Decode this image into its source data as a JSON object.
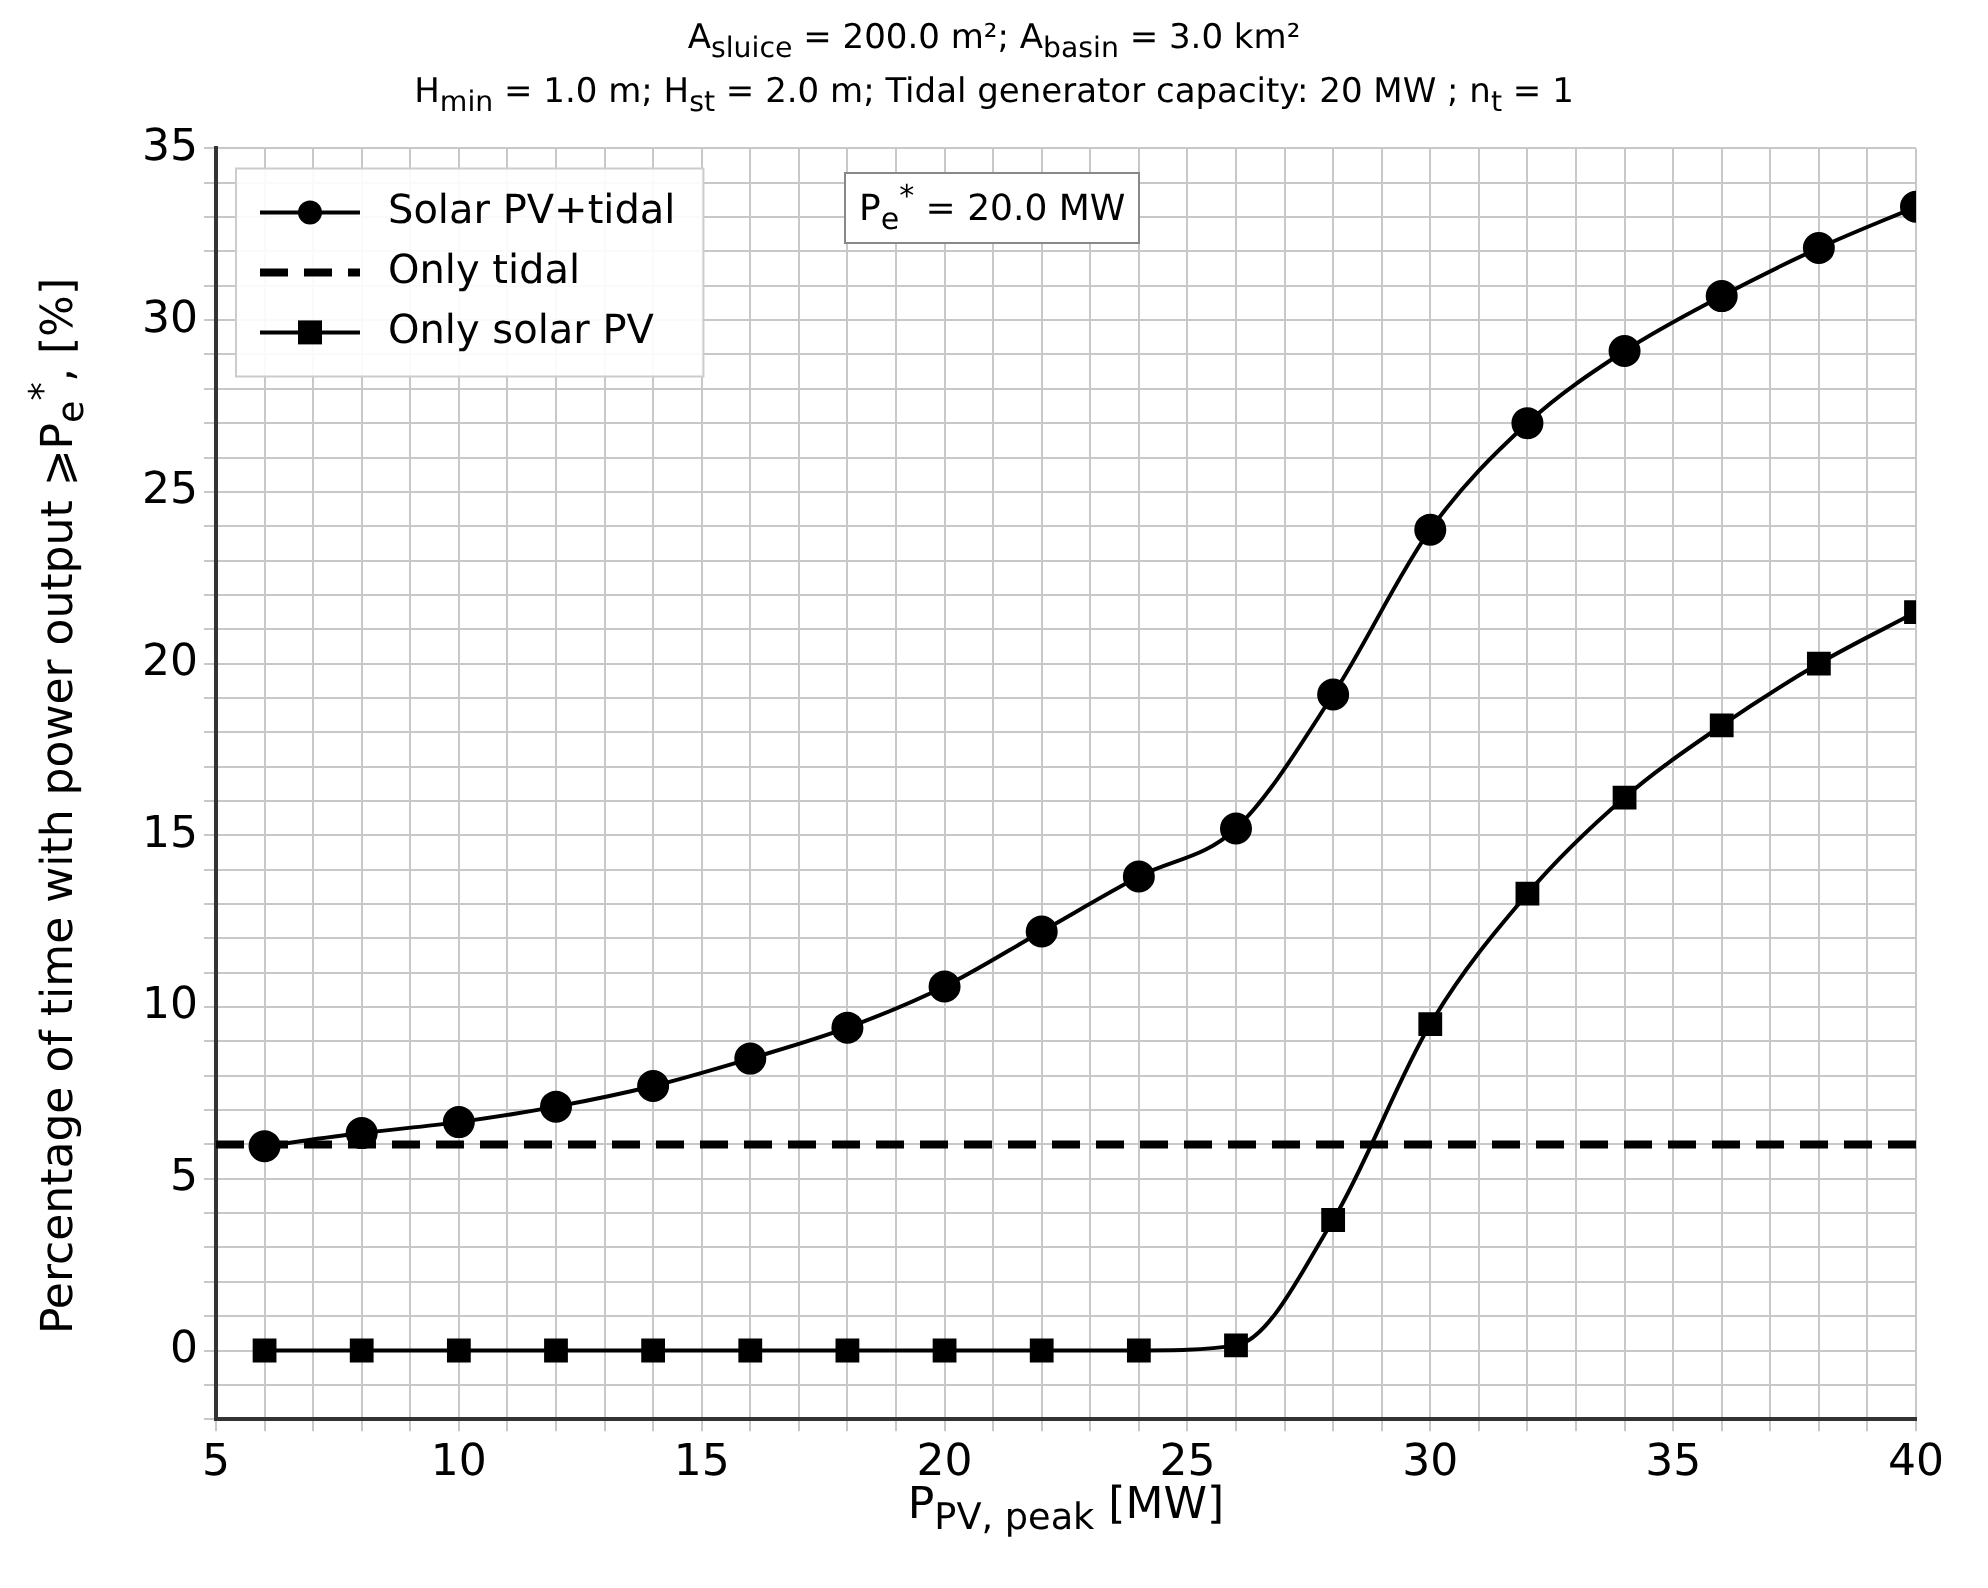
{
  "chart_data": {
    "type": "line",
    "title": "A$_{sluice}$ = 200.0 m²; A$_{basin}$ = 3.0 km²",
    "subtitle": "H$_{min}$ = 1.0 m; H$_{st}$ = 2.0 m; Tidal generator capacity: 20 MW ; n$_{t}$ = 1",
    "xlabel": "P$_{PV, peak}$ [MW]",
    "ylabel": "Percentage of time with power output ⩾P$_{e}$$^{*}$, [%]",
    "annotations": [
      "P$_{e}$$^{*}$ = 20.0 MW"
    ],
    "xlim": [
      5,
      40
    ],
    "ylim": [
      -2,
      35
    ],
    "xticks": [
      5,
      {
        "value": 6,
        "label": null
      },
      {
        "value": 7,
        "label": null
      },
      {
        "value": 8,
        "label": null
      },
      {
        "value": 9,
        "label": null
      },
      10,
      {
        "value": 11,
        "label": null
      },
      {
        "value": 12,
        "label": null
      },
      {
        "value": 13,
        "label": null
      },
      {
        "value": 14,
        "label": null
      },
      15,
      {
        "value": 16,
        "label": null
      },
      {
        "value": 17,
        "label": null
      },
      {
        "value": 18,
        "label": null
      },
      {
        "value": 19,
        "label": null
      },
      20,
      {
        "value": 21,
        "label": null
      },
      {
        "value": 22,
        "label": null
      },
      {
        "value": 23,
        "label": null
      },
      {
        "value": 24,
        "label": null
      },
      25,
      {
        "value": 26,
        "label": null
      },
      {
        "value": 27,
        "label": null
      },
      {
        "value": 28,
        "label": null
      },
      {
        "value": 29,
        "label": null
      },
      30,
      {
        "value": 31,
        "label": null
      },
      {
        "value": 32,
        "label": null
      },
      {
        "value": 33,
        "label": null
      },
      {
        "value": 34,
        "label": null
      },
      35,
      {
        "value": 36,
        "label": null
      },
      {
        "value": 37,
        "label": null
      },
      {
        "value": 38,
        "label": null
      },
      {
        "value": 39,
        "label": null
      },
      40
    ],
    "yticks": [
      {
        "value": -2,
        "label": null
      },
      {
        "value": -1,
        "label": null
      },
      0,
      {
        "value": 1,
        "label": null
      },
      {
        "value": 2,
        "label": null
      },
      {
        "value": 3,
        "label": null
      },
      {
        "value": 4,
        "label": null
      },
      5,
      {
        "value": 6,
        "label": null
      },
      {
        "value": 7,
        "label": null
      },
      {
        "value": 8,
        "label": null
      },
      {
        "value": 9,
        "label": null
      },
      10,
      {
        "value": 11,
        "label": null
      },
      {
        "value": 12,
        "label": null
      },
      {
        "value": 13,
        "label": null
      },
      {
        "value": 14,
        "label": null
      },
      15,
      {
        "value": 16,
        "label": null
      },
      {
        "value": 17,
        "label": null
      },
      {
        "value": 18,
        "label": null
      },
      {
        "value": 19,
        "label": null
      },
      20,
      {
        "value": 21,
        "label": null
      },
      {
        "value": 22,
        "label": null
      },
      {
        "value": 23,
        "label": null
      },
      {
        "value": 24,
        "label": null
      },
      25,
      {
        "value": 26,
        "label": null
      },
      {
        "value": 27,
        "label": null
      },
      {
        "value": 28,
        "label": null
      },
      {
        "value": 29,
        "label": null
      },
      30,
      {
        "value": 31,
        "label": null
      },
      {
        "value": 32,
        "label": null
      },
      {
        "value": 33,
        "label": null
      },
      {
        "value": 34,
        "label": null
      },
      35
    ],
    "grid": true,
    "legend": "top left",
    "series": [
      {
        "name": "Solar PV+tidal",
        "color": "#000000",
        "marker": "circle",
        "line_style": "solid",
        "x": [
          6,
          8,
          10,
          12,
          14,
          16,
          18,
          20,
          22,
          24,
          26,
          28,
          30,
          32,
          34,
          36,
          38,
          40
        ],
        "values": [
          5.95,
          6.33,
          6.65,
          7.1,
          7.7,
          8.5,
          9.4,
          10.6,
          12.2,
          13.8,
          15.2,
          19.1,
          23.9,
          27.0,
          29.1,
          30.7,
          32.1,
          33.3
        ]
      },
      {
        "name": "Only tidal",
        "color": "#000000",
        "marker": "none",
        "line_style": "dashed",
        "x": [
          5,
          40
        ],
        "values": [
          6.0,
          6.0
        ]
      },
      {
        "name": "Only solar PV",
        "color": "#000000",
        "marker": "square",
        "line_style": "solid",
        "x": [
          6,
          8,
          10,
          12,
          14,
          16,
          18,
          20,
          22,
          24,
          26,
          28,
          30,
          32,
          34,
          36,
          38,
          40
        ],
        "values": [
          0,
          0,
          0,
          0,
          0,
          0,
          0,
          0,
          0,
          0,
          0.15,
          3.8,
          9.5,
          13.3,
          16.1,
          18.2,
          20.0,
          21.5
        ]
      }
    ]
  }
}
